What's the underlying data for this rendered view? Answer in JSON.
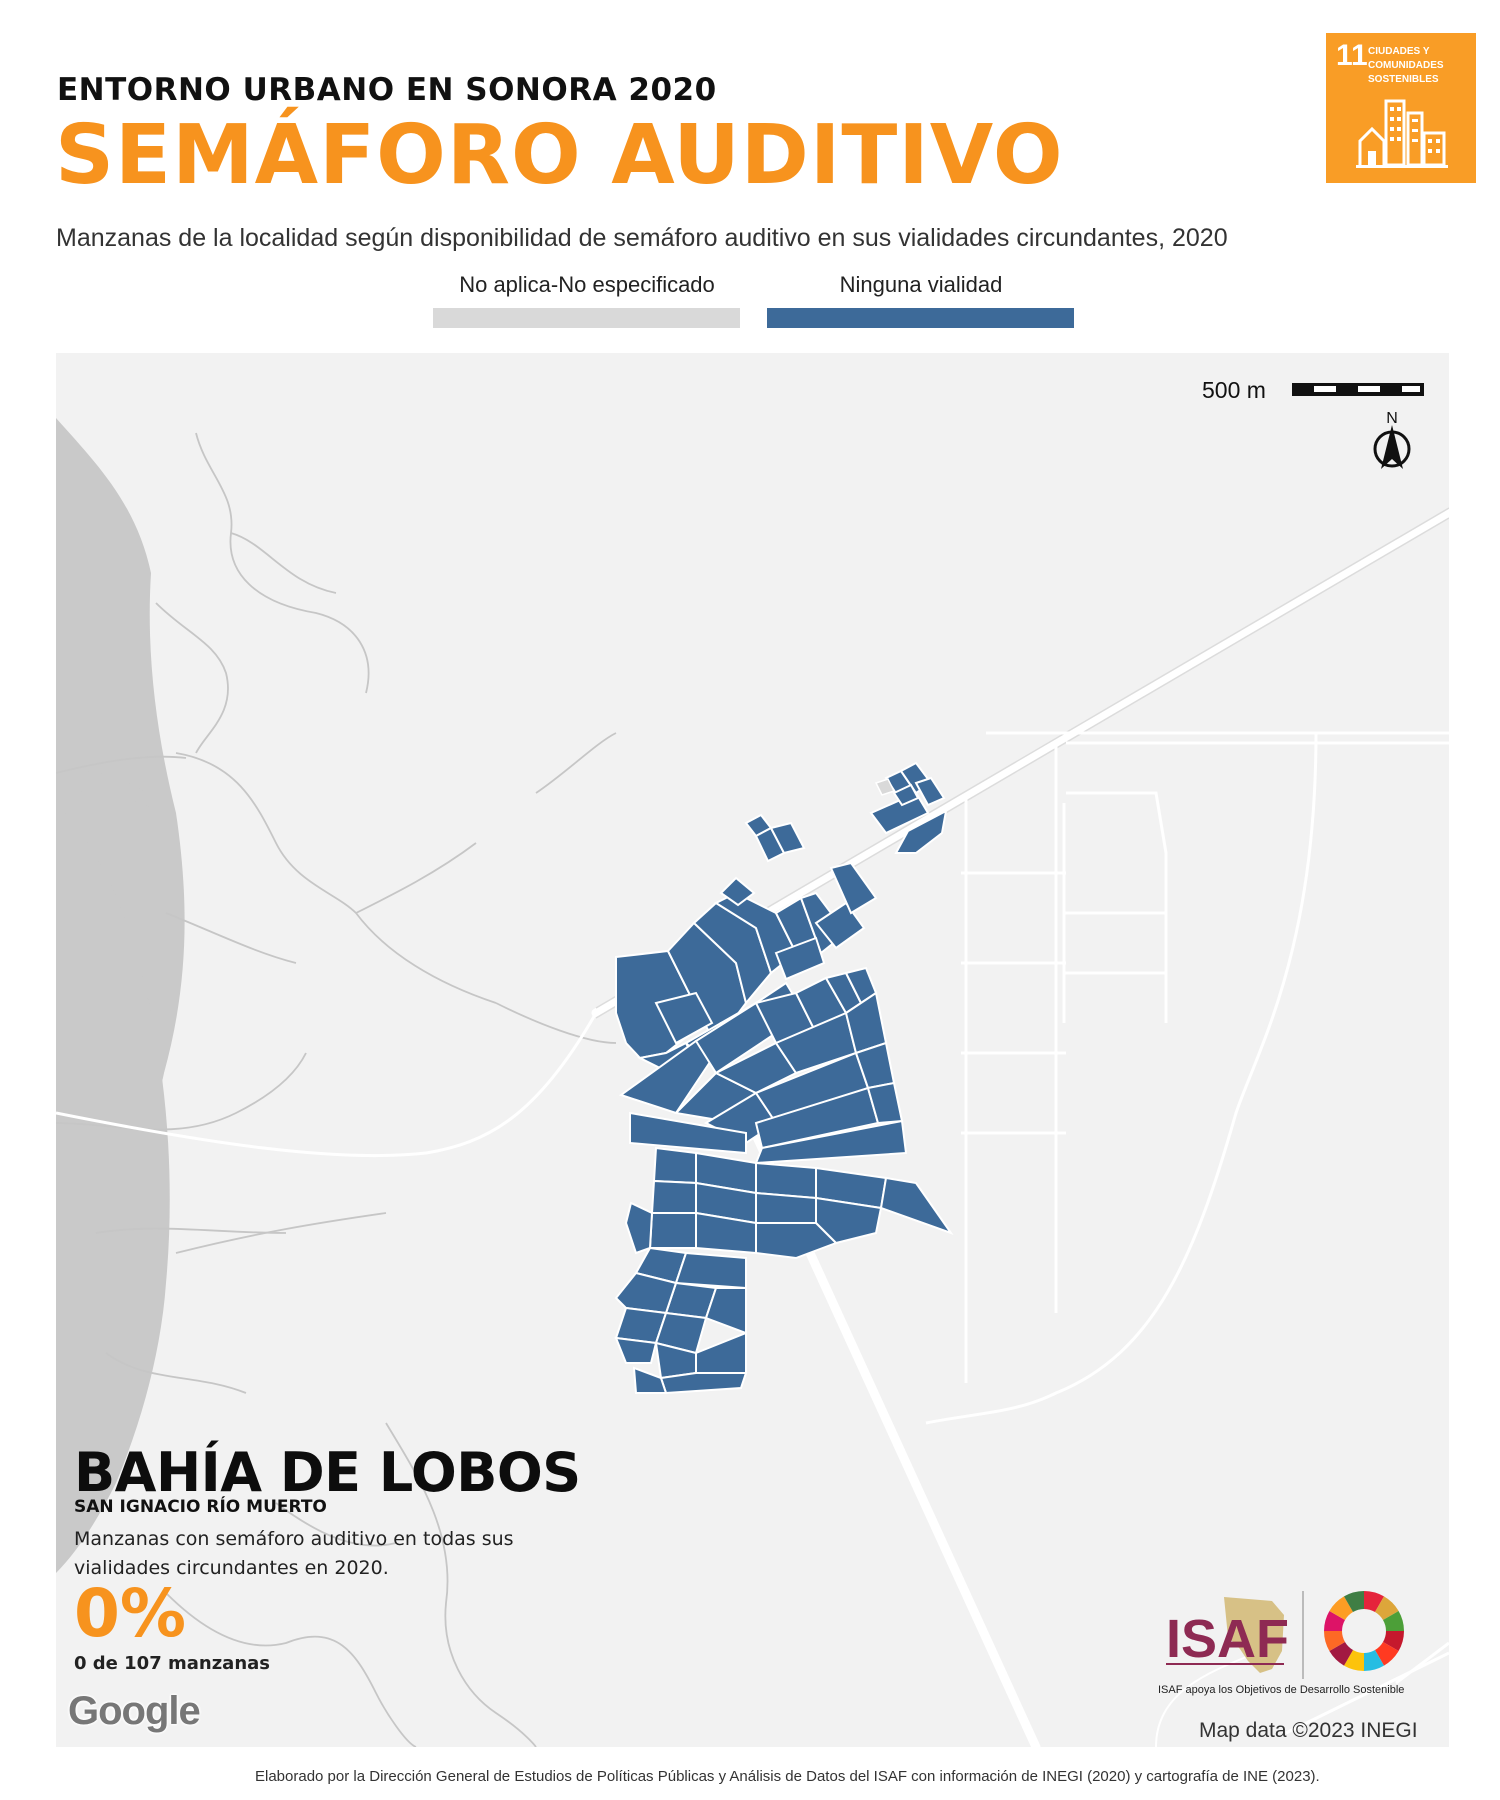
{
  "header": {
    "kicker": "ENTORNO URBANO EN SONORA 2020",
    "title": "SEMÁFORO AUDITIVO",
    "subtitle": "Manzanas de la localidad según disponibilidad de semáforo auditivo en sus vialidades circundantes, 2020"
  },
  "legend": [
    {
      "label": "No aplica-No especificado",
      "color": "#d9d9d9"
    },
    {
      "label": "Ninguna vialidad",
      "color": "#3d6a99"
    }
  ],
  "sdg_badge": {
    "number": "11",
    "text": "CIUDADES Y COMUNIDADES SOSTENIBLES",
    "color": "#f99d26",
    "icon": "city-buildings-icon"
  },
  "map": {
    "scale_label": "500 m",
    "north_label": "N",
    "water_color": "#c9c9c9",
    "land_color": "#f2f2f2",
    "block_color": "#3d6a99"
  },
  "locality": {
    "name": "BAHÍA DE LOBOS",
    "municipality": "SAN IGNACIO RÍO MUERTO",
    "description": "Manzanas con semáforo auditivo en todas sus vialidades circundantes en 2020.",
    "percent": "0%",
    "detail": "0 de 107 manzanas"
  },
  "attribution": {
    "google": "Google",
    "map_data": "Map data ©2023 INEGI"
  },
  "logos": {
    "isaf": "ISAF",
    "isaf_tagline": "ISAF apoya los Objetivos de Desarrollo Sostenible",
    "isaf_color": "#8e2a53"
  },
  "footer": {
    "credit": "Elaborado por la Dirección General de Estudios de Políticas Públicas y Análisis de Datos del ISAF con información de INEGI (2020) y cartografía de INE (2023)."
  }
}
